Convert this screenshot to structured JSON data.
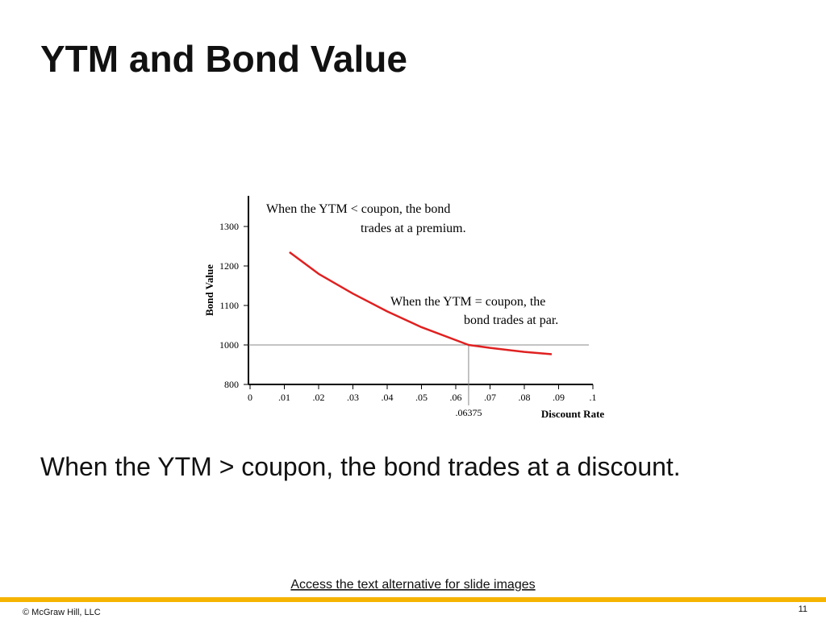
{
  "slide": {
    "title": "YTM and Bond Value",
    "body": "When the YTM > coupon, the bond trades at a discount.",
    "link": "Access the text alternative for slide images",
    "footer": "© McGraw Hill, LLC",
    "page_number": "11"
  },
  "chart_data": {
    "type": "line",
    "x_label": "Discount Rate",
    "y_label": "Bond Value",
    "x": [
      0.0115,
      0.02,
      0.03,
      0.04,
      0.05,
      0.06375,
      0.07,
      0.08,
      0.088
    ],
    "series": [
      {
        "name": "Bond Value",
        "color": "#e02020",
        "values": [
          1235,
          1180,
          1130,
          1085,
          1045,
          1000,
          985,
          965,
          953
        ]
      }
    ],
    "xlim": [
      0,
      0.1
    ],
    "xticks": [
      0,
      {
        "value": 0.01,
        "label": ".01"
      },
      {
        "value": 0.02,
        "label": ".02"
      },
      {
        "value": 0.03,
        "label": ".03"
      },
      {
        "value": 0.04,
        "label": ".04"
      },
      {
        "value": 0.05,
        "label": ".05"
      },
      {
        "value": 0.06,
        "label": ".06"
      },
      {
        "value": 0.07,
        "label": ".07"
      },
      {
        "value": 0.08,
        "label": ".08"
      },
      {
        "value": 0.09,
        "label": ".09"
      },
      {
        "value": 0.1,
        "label": ".1"
      }
    ],
    "ylim": [
      800,
      1380
    ],
    "yticks": [
      800,
      1000,
      1100,
      1200,
      1300
    ],
    "y_axis_break": true,
    "par_value": 1000,
    "par_rate": {
      "value": 0.06375,
      "label": ".06375"
    },
    "annotations": [
      [
        "When the YTM < coupon, the bond",
        "trades at a premium."
      ],
      [
        "When the YTM = coupon, the",
        "bond trades at par."
      ]
    ]
  }
}
